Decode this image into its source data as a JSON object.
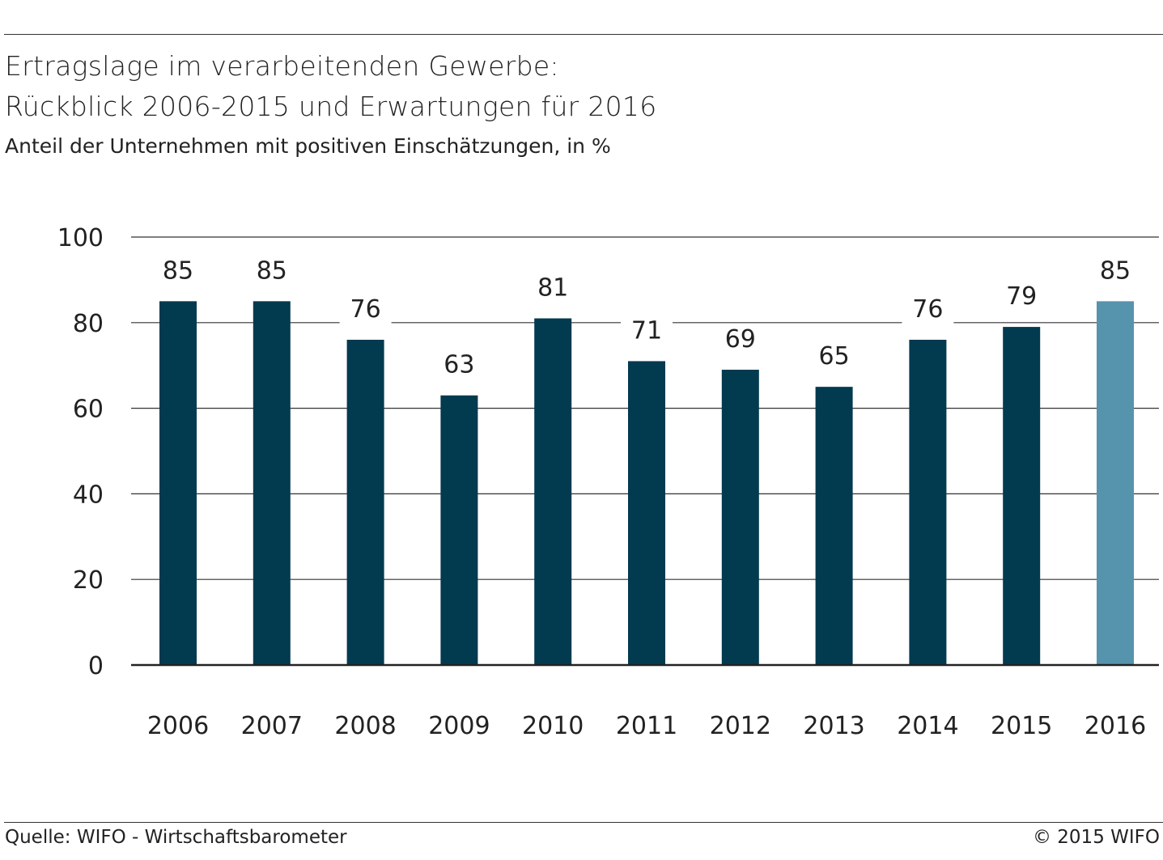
{
  "header": {
    "title_line1": "Ertragslage im verarbeitenden Gewerbe:",
    "title_line2": "Rückblick 2006-2015 und Erwartungen für 2016",
    "subtitle": "Anteil der Unternehmen mit positiven Einschätzungen, in %"
  },
  "footer": {
    "source": "Quelle: WIFO - Wirtschaftsbarometer",
    "copyright": "© 2015 WIFO"
  },
  "chart_data": {
    "type": "bar",
    "categories": [
      "2006",
      "2007",
      "2008",
      "2009",
      "2010",
      "2011",
      "2012",
      "2013",
      "2014",
      "2015",
      "2016"
    ],
    "values": [
      85,
      85,
      76,
      63,
      81,
      71,
      69,
      65,
      76,
      79,
      85
    ],
    "data_labels": [
      "85",
      "85",
      "76",
      "63",
      "81",
      "71",
      "69",
      "65",
      "76",
      "79",
      "85"
    ],
    "ylim": [
      0,
      100
    ],
    "yticks": [
      "0",
      "20",
      "40",
      "60",
      "80",
      "100"
    ],
    "grid": true,
    "legend": "none",
    "colors": {
      "actual": "#023a4f",
      "expectation": "#5693ad",
      "grid": "#333333"
    },
    "highlight_last": true
  }
}
